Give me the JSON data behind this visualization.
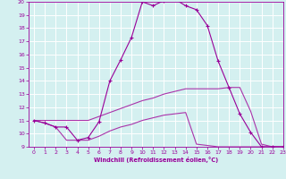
{
  "xlabel": "Windchill (Refroidissement éolien,°C)",
  "xlim": [
    -0.5,
    23
  ],
  "ylim": [
    9,
    20
  ],
  "xticks": [
    0,
    1,
    2,
    3,
    4,
    5,
    6,
    7,
    8,
    9,
    10,
    11,
    12,
    13,
    14,
    15,
    16,
    17,
    18,
    19,
    20,
    21,
    22,
    23
  ],
  "yticks": [
    9,
    10,
    11,
    12,
    13,
    14,
    15,
    16,
    17,
    18,
    19,
    20
  ],
  "bg_color": "#d4f0f0",
  "line_color1": "#990099",
  "line_color2": "#aa33aa",
  "line_color3": "#aa33aa",
  "grid_color": "#b0d8d8",
  "x": [
    0,
    1,
    2,
    3,
    4,
    5,
    6,
    7,
    8,
    9,
    10,
    11,
    12,
    13,
    14,
    15,
    16,
    17,
    18,
    19,
    20,
    21,
    22,
    23
  ],
  "y_main": [
    11.0,
    10.8,
    10.5,
    10.5,
    9.5,
    9.7,
    10.9,
    14.0,
    15.6,
    17.3,
    20.0,
    19.7,
    20.1,
    20.2,
    19.7,
    19.4,
    18.2,
    15.5,
    13.5,
    11.5,
    10.1,
    9.0,
    9.0,
    9.0
  ],
  "y_upper": [
    11.0,
    11.0,
    11.0,
    11.0,
    11.0,
    11.0,
    11.3,
    11.6,
    11.9,
    12.2,
    12.5,
    12.7,
    13.0,
    13.2,
    13.4,
    13.4,
    13.4,
    13.4,
    13.5,
    13.5,
    11.7,
    9.2,
    9.0,
    9.0
  ],
  "y_lower": [
    11.0,
    10.8,
    10.5,
    9.5,
    9.5,
    9.5,
    9.8,
    10.2,
    10.5,
    10.7,
    11.0,
    11.2,
    11.4,
    11.5,
    11.6,
    9.2,
    9.1,
    9.0,
    9.0,
    9.0,
    9.0,
    9.0,
    9.0,
    9.0
  ]
}
